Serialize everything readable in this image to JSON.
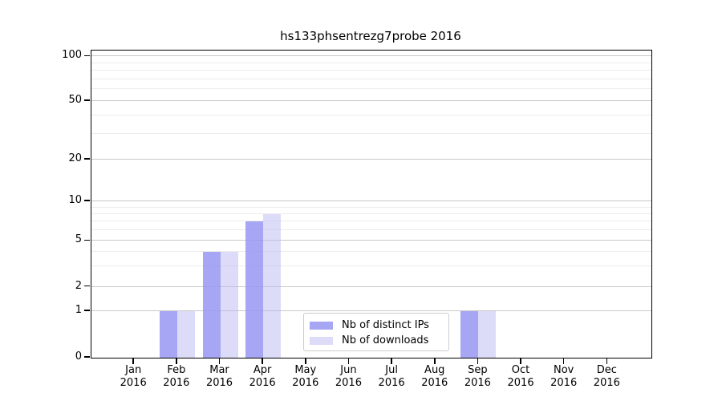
{
  "title": "hs133phsentrezg7probe 2016",
  "colors": {
    "ips": "rgba(150,150,242,0.85)",
    "downloads": "rgba(185,185,241,0.5)",
    "grid_major": "#c8c8c8",
    "grid_minor": "#ececec",
    "axis": "#000000",
    "legend_border": "#cccccc",
    "background": "#ffffff"
  },
  "legend": {
    "items": [
      {
        "label": "Nb of distinct IPs",
        "color_key": "ips"
      },
      {
        "label": "Nb of downloads",
        "color_key": "downloads"
      }
    ]
  },
  "chart_data": {
    "type": "bar",
    "title": "hs133phsentrezg7probe 2016",
    "categories": [
      "Jan 2016",
      "Feb 2016",
      "Mar 2016",
      "Apr 2016",
      "May 2016",
      "Jun 2016",
      "Jul 2016",
      "Aug 2016",
      "Sep 2016",
      "Oct 2016",
      "Nov 2016",
      "Dec 2016"
    ],
    "x_tick_months": [
      "Jan",
      "Feb",
      "Mar",
      "Apr",
      "May",
      "Jun",
      "Jul",
      "Aug",
      "Sep",
      "Oct",
      "Nov",
      "Dec"
    ],
    "x_tick_year": "2016",
    "series": [
      {
        "name": "Nb of distinct IPs",
        "color_key": "ips",
        "values": [
          0,
          1,
          4,
          7,
          0,
          0,
          0,
          0,
          1,
          0,
          0,
          0
        ]
      },
      {
        "name": "Nb of downloads",
        "color_key": "downloads",
        "values": [
          0,
          1,
          4,
          8,
          0,
          0,
          0,
          0,
          1,
          0,
          0,
          0
        ]
      }
    ],
    "y_axis": {
      "scale": "log above 1, compressed linear 0-1",
      "ticks": [
        0,
        1,
        2,
        5,
        10,
        20,
        50,
        100
      ],
      "minor_gridlines": [
        3,
        4,
        6,
        7,
        8,
        9,
        30,
        40,
        60,
        70,
        80,
        90
      ],
      "range": [
        0,
        110
      ]
    },
    "xlabel": "",
    "ylabel": "",
    "grid": true,
    "legend_position": "lower center"
  }
}
